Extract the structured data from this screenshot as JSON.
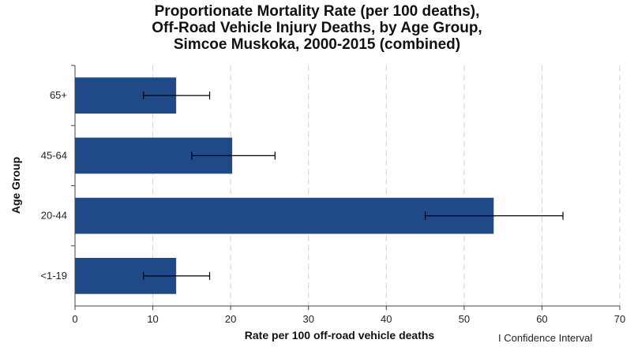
{
  "chart_data": {
    "type": "bar",
    "orientation": "horizontal",
    "title_lines": [
      "Proportionate Mortality Rate (per 100 deaths),",
      "Off-Road Vehicle Injury Deaths, by Age Group,",
      "Simcoe Muskoka, 2000-2015 (combined)"
    ],
    "xlabel": "Rate per 100 off-road vehicle deaths",
    "ylabel": "Age Group",
    "xlim": [
      0,
      70
    ],
    "x_ticks": [
      0,
      10,
      20,
      30,
      40,
      50,
      60,
      70
    ],
    "grid": "vertical dashed",
    "categories": [
      "65+",
      "45-64",
      "20-44",
      "<1-19"
    ],
    "values": [
      13,
      20.2,
      53.8,
      13
    ],
    "ci_lower": [
      8.8,
      15,
      45,
      8.8
    ],
    "ci_upper": [
      17.3,
      25.7,
      62.7,
      17.3
    ],
    "bar_color": "#1f4a87",
    "legend_text": "I Confidence Interval",
    "legend_position": "bottom-right"
  }
}
